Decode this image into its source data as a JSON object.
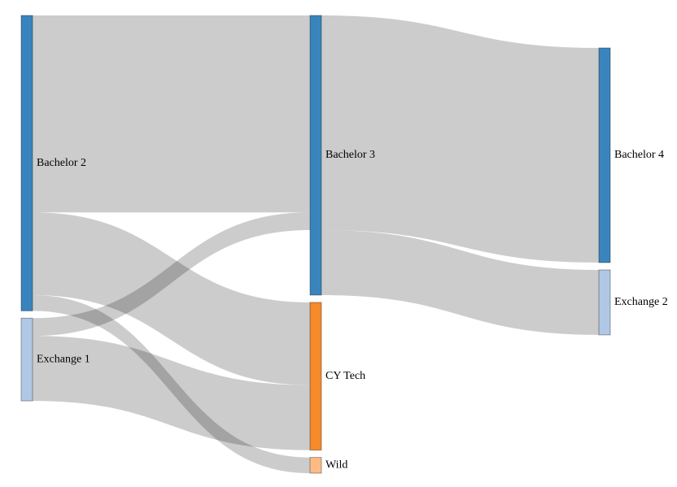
{
  "chart_data": {
    "type": "sankey",
    "nodes": [
      {
        "id": "bachelor2",
        "label": "Bachelor 2",
        "column": 0,
        "color": "#3a84be"
      },
      {
        "id": "exchange1",
        "label": "Exchange 1",
        "column": 0,
        "color": "#b0c8e6"
      },
      {
        "id": "bachelor3",
        "label": "Bachelor 3",
        "column": 1,
        "color": "#3a84be"
      },
      {
        "id": "cytech",
        "label": "CY Tech",
        "column": 1,
        "color": "#f58a2b"
      },
      {
        "id": "wild",
        "label": "Wild",
        "column": 1,
        "color": "#fdbb84"
      },
      {
        "id": "bachelor4",
        "label": "Bachelor 4",
        "column": 2,
        "color": "#3a84be"
      },
      {
        "id": "exchange2",
        "label": "Exchange 2",
        "column": 2,
        "color": "#b0c8e6"
      }
    ],
    "links": [
      {
        "source": "bachelor2",
        "target": "bachelor3",
        "value": 100
      },
      {
        "source": "bachelor2",
        "target": "cytech",
        "value": 42
      },
      {
        "source": "bachelor2",
        "target": "wild",
        "value": 8
      },
      {
        "source": "exchange1",
        "target": "bachelor3",
        "value": 9
      },
      {
        "source": "exchange1",
        "target": "cytech",
        "value": 33
      },
      {
        "source": "bachelor3",
        "target": "bachelor4",
        "value": 109
      },
      {
        "source": "bachelor3",
        "target": "exchange2",
        "value": 33
      }
    ]
  }
}
